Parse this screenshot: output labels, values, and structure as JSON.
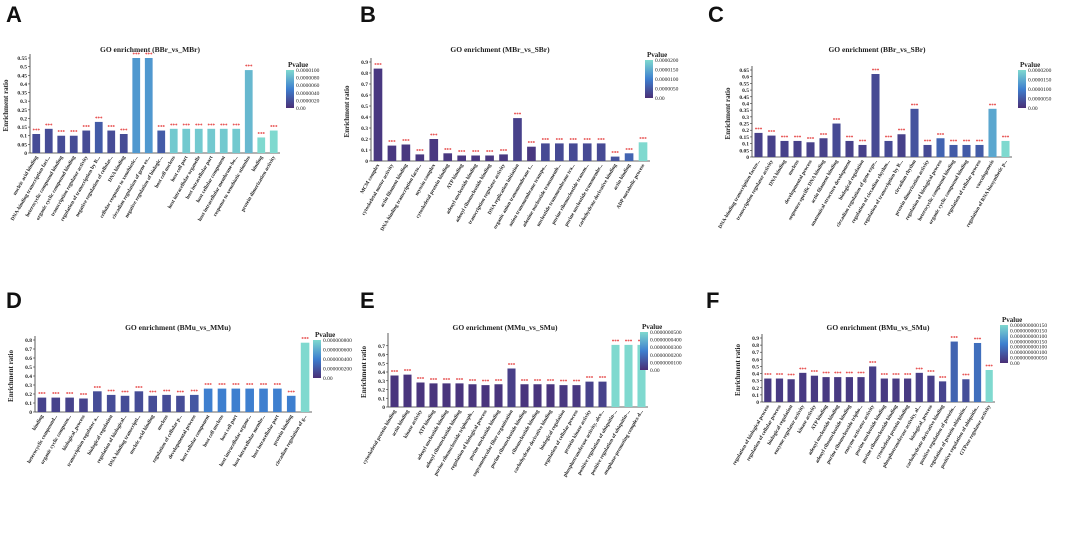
{
  "figure_title": "",
  "chart_data": [
    {
      "panel": "A",
      "type": "bar",
      "title": "GO enrichment (BBr_vs_MBr)",
      "ylabel": "Enrichment ratio",
      "ylim": [
        0,
        0.55
      ],
      "yticks": [
        "0",
        "0.05",
        "0.1",
        "0.15",
        "0.2",
        "0.25",
        "0.3",
        "0.35",
        "0.4",
        "0.45",
        "0.5",
        "0.55"
      ],
      "legend": {
        "title": "Pvalue",
        "labels": [
          "0.0000100",
          "0.0000080",
          "0.0000060",
          "0.0000040",
          "0.0000020",
          "0.00"
        ]
      },
      "categories": [
        "nucleic acid binding",
        "DNA-binding transcription fact...",
        "heterocyclic compound binding",
        "organic cyclic compound binding",
        "transcription regulator activity",
        "regulation of transcription by R...",
        "negative regulation of cellular...",
        "DNA binding",
        "cellular response to xenobiotic...",
        "circadian regulation of gene ex...",
        "negative regulation of biologic...",
        "host cell nucleus",
        "host cell part",
        "host intracellular organelle",
        "host intracellular part",
        "host cellular component",
        "host intracellular membrane-bo...",
        "response to xenobiotic stimulus",
        "binding",
        "protein dimerization activity"
      ],
      "values": [
        0.11,
        0.14,
        0.1,
        0.1,
        0.13,
        0.18,
        0.13,
        0.11,
        0.55,
        0.55,
        0.13,
        0.14,
        0.14,
        0.14,
        0.14,
        0.14,
        0.14,
        0.48,
        0.09,
        0.13
      ],
      "pvalues": [
        2e-06,
        2e-06,
        2e-06,
        2e-06,
        2e-06,
        3e-06,
        2e-06,
        2e-06,
        7e-06,
        7e-06,
        3e-06,
        1e-05,
        1e-05,
        1e-05,
        1e-05,
        1e-05,
        1e-05,
        9e-06,
        1.1e-05,
        1.1e-05
      ],
      "labels": [
        "***",
        "***",
        "***",
        "***",
        "***",
        "***",
        "***",
        "***",
        "***",
        "***",
        "***",
        "***",
        "***",
        "***",
        "***",
        "***",
        "***",
        "***",
        "***",
        "***"
      ]
    },
    {
      "panel": "B",
      "type": "bar",
      "title": "GO enrichment (MBr_vs_SBr)",
      "ylabel": "Enrichment ratio",
      "ylim": [
        0,
        0.9
      ],
      "yticks": [
        "0",
        "0.1",
        "0.2",
        "0.3",
        "0.4",
        "0.5",
        "0.6",
        "0.7",
        "0.8",
        "0.9"
      ],
      "legend": {
        "title": "Pvalue",
        "labels": [
          "0.0000200",
          "0.0000150",
          "0.0000100",
          "0.0000050",
          "0.00"
        ]
      },
      "categories": [
        "MCM complex",
        "cytoskeletal motor activity",
        "actin filament binding",
        "DNA-binding transcription facto...",
        "myosin complex",
        "cytoskeletal protein binding",
        "ATP binding",
        "adenyl nucleotide binding",
        "adenyl ribonucleotide binding",
        "transcription regulator activity",
        "DNA replication initiation",
        "organic anion transmembrane t...",
        "anion transmembrane transpo...",
        "adenine nucleotide transmemb...",
        "nucleotide transmembrane tra...",
        "purine ribonucleotide transm...",
        "purine nucleotide transmembr...",
        "carbohydrate derivative binding",
        "actin binding",
        "ADP metabolic process"
      ],
      "values": [
        0.84,
        0.14,
        0.15,
        0.06,
        0.2,
        0.07,
        0.05,
        0.05,
        0.05,
        0.06,
        0.39,
        0.13,
        0.16,
        0.16,
        0.16,
        0.16,
        0.16,
        0.04,
        0.07,
        0.17
      ],
      "pvalues": [
        1e-06,
        1e-06,
        1e-06,
        1e-06,
        1e-06,
        1e-06,
        1e-06,
        1e-06,
        1e-06,
        1e-06,
        2e-06,
        1e-06,
        3e-06,
        3e-06,
        3e-06,
        3e-06,
        3e-06,
        4e-06,
        6e-06,
        1.8e-05
      ],
      "labels": [
        "***",
        "***",
        "***",
        "***",
        "***",
        "***",
        "***",
        "***",
        "***",
        "***",
        "***",
        "***",
        "***",
        "***",
        "***",
        "***",
        "***",
        "***",
        "***",
        "***"
      ]
    },
    {
      "panel": "C",
      "type": "bar",
      "title": "GO enrichment (BBr_vs_SBr)",
      "ylabel": "Enrichment ratio",
      "ylim": [
        0,
        0.65
      ],
      "yticks": [
        "0",
        "0.05",
        "0.1",
        "0.15",
        "0.2",
        "0.25",
        "0.3",
        "0.35",
        "0.4",
        "0.45",
        "0.5",
        "0.55",
        "0.6",
        "0.65"
      ],
      "legend": {
        "title": "Pvalue",
        "labels": [
          "0.0000200",
          "0.0000150",
          "0.0000100",
          "0.0000050",
          "0.00"
        ]
      },
      "categories": [
        "DNA-binding transcription factor...",
        "transcription regulator activity",
        "DNA binding",
        "nucleus",
        "developmental process",
        "sequence-specific DNA binding",
        "actin filament binding",
        "anatomical structure development",
        "biological regulation",
        "circadian regulation of gene expr...",
        "regulation of circadian rhythm...",
        "regulation of transcription by R...",
        "circadian rhythm",
        "protein dimerization activity",
        "regulation of biological process",
        "heterocyclic compound binding",
        "organic cyclic compound binding",
        "regulation of cellular process",
        "vasculogenesis",
        "regulation of RNA biosynthetic p..."
      ],
      "values": [
        0.18,
        0.16,
        0.12,
        0.12,
        0.11,
        0.14,
        0.25,
        0.12,
        0.09,
        0.62,
        0.12,
        0.17,
        0.36,
        0.09,
        0.14,
        0.09,
        0.09,
        0.09,
        0.36,
        0.12
      ],
      "pvalues": [
        2e-06,
        2e-06,
        2e-06,
        2e-06,
        2e-06,
        2e-06,
        3e-06,
        2e-06,
        2e-06,
        3e-06,
        3e-06,
        2e-06,
        4e-06,
        3e-06,
        6e-06,
        5e-06,
        5e-06,
        5e-06,
        1.3e-05,
        1.8e-05
      ],
      "labels": [
        "***",
        "***",
        "***",
        "***",
        "***",
        "***",
        "***",
        "***",
        "***",
        "***",
        "***",
        "***",
        "***",
        "***",
        "***",
        "***",
        "***",
        "***",
        "***",
        "***"
      ]
    },
    {
      "panel": "D",
      "type": "bar",
      "title": "GO enrichment (BMu_vs_MMu)",
      "ylabel": "Enrichment ratio",
      "ylim": [
        0,
        0.8
      ],
      "yticks": [
        "0",
        "0.1",
        "0.2",
        "0.3",
        "0.4",
        "0.5",
        "0.6",
        "0.7",
        "0.8"
      ],
      "legend": {
        "title": "Pvalue",
        "labels": [
          "0.000000800",
          "0.000000600",
          "0.000000400",
          "0.000000200",
          "0.00"
        ]
      },
      "categories": [
        "binding",
        "heterocyclic compound...",
        "organic cyclic compoun...",
        "biological_process",
        "transcription regulator a...",
        "biological regulation",
        "regulation of biological...",
        "DNA-binding transcripti...",
        "nucleic acid binding",
        "nucleus",
        "regulation of cellular p...",
        "developmental process",
        "host cellular component",
        "host cell nucleus",
        "host cell part",
        "host intracellular organe...",
        "host intracellular membr...",
        "host intracellular part",
        "protein binding",
        "circadian regulation of g..."
      ],
      "values": [
        0.16,
        0.16,
        0.16,
        0.15,
        0.23,
        0.19,
        0.18,
        0.23,
        0.18,
        0.19,
        0.18,
        0.19,
        0.26,
        0.26,
        0.26,
        0.26,
        0.26,
        0.26,
        0.18,
        0.77
      ],
      "pvalues": [
        1e-07,
        1e-07,
        1e-07,
        1e-07,
        1.5e-07,
        1.5e-07,
        1.5e-07,
        1.5e-07,
        1.5e-07,
        1.5e-07,
        1.5e-07,
        2e-07,
        4e-07,
        4e-07,
        4e-07,
        4e-07,
        4e-07,
        4e-07,
        4e-07,
        8e-07
      ],
      "labels": [
        "***",
        "***",
        "***",
        "***",
        "***",
        "***",
        "***",
        "***",
        "***",
        "***",
        "***",
        "***",
        "***",
        "***",
        "***",
        "***",
        "***",
        "***",
        "***",
        "***"
      ]
    },
    {
      "panel": "E",
      "type": "bar",
      "title": "GO enrichment (MMu_vs_SMu)",
      "ylabel": "Enrichment ratio",
      "ylim": [
        0,
        0.8
      ],
      "yticks": [
        "0",
        "0.1",
        "0.2",
        "0.3",
        "0.4",
        "0.5",
        "0.6",
        "0.7"
      ],
      "legend": {
        "title": "Pvalue",
        "labels": [
          "0.0000000500",
          "0.0000000400",
          "0.0000000300",
          "0.0000000200",
          "0.0000000100",
          "0.00"
        ]
      },
      "categories": [
        "cytoskeletal protein binding",
        "actin binding",
        "kinase activity",
        "ATP binding",
        "adenyl nucleotide binding",
        "adenyl ribonucleotide binding",
        "purine ribonucleoside triphosph...",
        "regulation of biological process",
        "purine nucleotide binding",
        "supramolecular fiber organization",
        "purine ribonucleotide binding",
        "ribonucleotide binding",
        "carbohydrate derivative binding",
        "biological regulation",
        "regulation of cellular process",
        "protein kinase activity",
        "phosphotransferase activity, alco...",
        "positive regulation of ubiquitin-...",
        "positive regulation of ubiquitin-...",
        "anaphase-promoting complex-d..."
      ],
      "values": [
        0.36,
        0.37,
        0.28,
        0.27,
        0.27,
        0.27,
        0.26,
        0.25,
        0.26,
        0.44,
        0.26,
        0.26,
        0.26,
        0.25,
        0.25,
        0.29,
        0.29,
        0.71,
        0.71,
        0.71
      ],
      "pvalues": [
        2e-09,
        2e-09,
        2e-09,
        2e-09,
        2e-09,
        2e-09,
        2e-09,
        2e-09,
        2e-09,
        5e-09,
        2e-09,
        2e-09,
        2e-09,
        3e-09,
        3e-09,
        6e-09,
        6e-09,
        5e-08,
        5e-08,
        5e-08
      ],
      "labels": [
        "***",
        "***",
        "***",
        "***",
        "***",
        "***",
        "***",
        "***",
        "***",
        "***",
        "***",
        "***",
        "***",
        "***",
        "***",
        "***",
        "***",
        "***",
        "***",
        "***"
      ]
    },
    {
      "panel": "F",
      "type": "bar",
      "title": "GO enrichment (BMu_vs_SMu)",
      "ylabel": "Enrichment ratio",
      "ylim": [
        0,
        0.9
      ],
      "yticks": [
        "0",
        "0.1",
        "0.2",
        "0.3",
        "0.4",
        "0.5",
        "0.6",
        "0.7",
        "0.8",
        "0.9"
      ],
      "legend": {
        "title": "Pvalue",
        "labels": [
          "0.000000000150",
          "0.000000000150",
          "0.000000000100",
          "0.000000000150",
          "0.000000000100",
          "0.000000000100",
          "0.000000000050",
          "0.00"
        ]
      },
      "categories": [
        "regulation of biological process",
        "regulation of cellular process",
        "biological regulation",
        "enzyme regulator activity",
        "kinase activity",
        "ATP binding",
        "adenyl nucleotide binding",
        "adenyl ribonucleotide binding",
        "purine ribonucleoside tripho...",
        "enzyme activator activity",
        "purine nucleotide binding",
        "purine ribonucleotide binding",
        "cytoskeletal protein binding",
        "phosphotransferase activity, al...",
        "biological_process",
        "carbohydrate derivative binding",
        "positive regulation of protein...",
        "regulation of protein ubiquitin...",
        "positive regulation of ubiquitin...",
        "GTPase regulator activity"
      ],
      "values": [
        0.33,
        0.33,
        0.32,
        0.41,
        0.37,
        0.35,
        0.35,
        0.35,
        0.35,
        0.5,
        0.33,
        0.33,
        0.33,
        0.41,
        0.37,
        0.29,
        0.85,
        0.32,
        0.83,
        0.45
      ],
      "pvalues": [
        1e-11,
        1e-11,
        1e-11,
        1e-11,
        1e-11,
        1e-11,
        1e-11,
        1e-11,
        1e-11,
        1.5e-11,
        1e-11,
        1e-11,
        1e-11,
        1.5e-11,
        1.5e-11,
        2e-11,
        5e-11,
        3e-11,
        6e-11,
        1.5e-10
      ],
      "labels": [
        "***",
        "***",
        "***",
        "***",
        "***",
        "***",
        "***",
        "***",
        "***",
        "***",
        "***",
        "***",
        "***",
        "***",
        "***",
        "***",
        "***",
        "***",
        "***",
        "***"
      ]
    }
  ],
  "colors": {
    "low_p": "#4a2f76",
    "mid_p": "#3e7fcf",
    "high_p": "#7fd9cf",
    "star": "#e02020"
  }
}
